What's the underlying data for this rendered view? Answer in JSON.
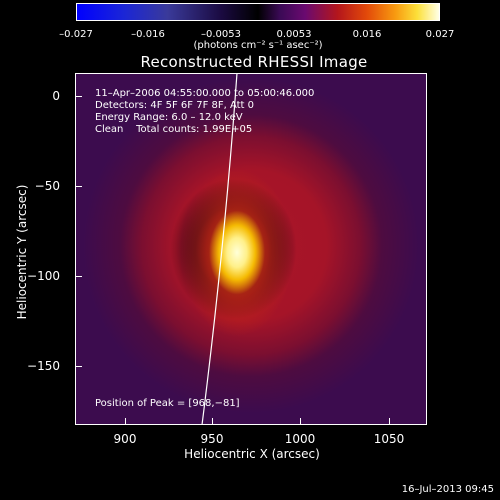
{
  "colorbar": {
    "ticks": [
      "–0.027",
      "–0.016",
      "–0.0053",
      "0.0053",
      "0.016",
      "0.027"
    ],
    "unit_label": "(photons cm⁻² s⁻¹ asec⁻²)",
    "colormap": "blue-black-red-yellow-white"
  },
  "title": "Reconstructed RHESSI Image",
  "axes": {
    "xlabel": "Heliocentric X (arcsec)",
    "ylabel": "Heliocentric Y (arcsec)",
    "xticks": [
      "900",
      "950",
      "1000",
      "1050"
    ],
    "yticks": [
      "0",
      "−50",
      "−100",
      "−150"
    ],
    "xlim": [
      870,
      1065
    ],
    "ylim": [
      -180,
      15
    ]
  },
  "info": {
    "time_range": "11–Apr–2006 04:55:00.000 to 05:00:46.000",
    "detectors": "Detectors: 4F 5F 6F 7F 8F, Att 0",
    "energy": "Energy Range: 6.0 – 12.0 keV",
    "clean": "Clean    Total counts: 1.99E+05"
  },
  "peak": "Position of Peak = [968,−81]",
  "timestamp": "16–Jul–2013 09:45",
  "colors": {
    "background": "#000000",
    "text": "#ffffff",
    "limb_line": "#ffffff",
    "source_core": "#ffffd8",
    "source_halo": "#a81628"
  }
}
